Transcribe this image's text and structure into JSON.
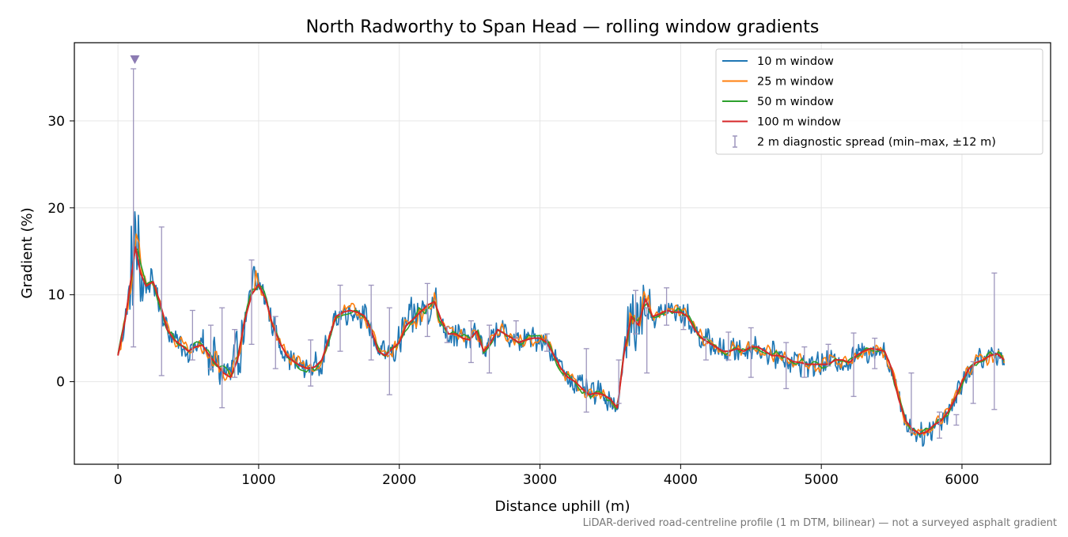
{
  "chart_data": {
    "type": "line",
    "title": "North Radworthy to Span Head — rolling window gradients",
    "xlabel": "Distance uphill (m)",
    "ylabel": "Gradient (%)",
    "footnote": "LiDAR-derived road-centreline profile (1 m DTM, bilinear) — not a surveyed asphalt gradient",
    "xlim": [
      -310,
      6630
    ],
    "ylim": [
      -9.5,
      39
    ],
    "x_ticks": [
      0,
      1000,
      2000,
      3000,
      4000,
      5000,
      6000
    ],
    "y_ticks": [
      0,
      10,
      20,
      30
    ],
    "grid": true,
    "legend_position": "upper right",
    "legend": [
      {
        "label": "10 m window",
        "color": "#1f77b4",
        "kind": "line"
      },
      {
        "label": "25 m window",
        "color": "#ff7f0e",
        "kind": "line"
      },
      {
        "label": "50 m window",
        "color": "#2ca02c",
        "kind": "line"
      },
      {
        "label": "100 m window",
        "color": "#d62728",
        "kind": "line"
      },
      {
        "label": "2 m diagnostic spread (min–max, ±12 m)",
        "color": "#9d95bd",
        "kind": "errorbar"
      }
    ],
    "series": [
      {
        "name": "100 m window",
        "color": "#d62728",
        "x": [
          0,
          50,
          90,
          125,
          160,
          200,
          250,
          300,
          350,
          400,
          450,
          500,
          550,
          600,
          650,
          700,
          750,
          800,
          850,
          900,
          950,
          1000,
          1050,
          1100,
          1150,
          1200,
          1250,
          1300,
          1350,
          1400,
          1450,
          1500,
          1550,
          1600,
          1650,
          1700,
          1750,
          1800,
          1850,
          1900,
          1950,
          2000,
          2050,
          2100,
          2150,
          2200,
          2250,
          2300,
          2350,
          2400,
          2450,
          2500,
          2550,
          2600,
          2650,
          2700,
          2750,
          2800,
          2850,
          2900,
          2950,
          3000,
          3050,
          3100,
          3150,
          3200,
          3250,
          3300,
          3350,
          3400,
          3450,
          3500,
          3550,
          3600,
          3650,
          3700,
          3750,
          3800,
          3850,
          3900,
          3950,
          4000,
          4050,
          4100,
          4150,
          4200,
          4250,
          4300,
          4350,
          4400,
          4450,
          4500,
          4550,
          4600,
          4650,
          4700,
          4750,
          4800,
          4850,
          4900,
          4950,
          5000,
          5050,
          5100,
          5150,
          5200,
          5250,
          5300,
          5350,
          5400,
          5450,
          5500,
          5550,
          5600,
          5650,
          5700,
          5750,
          5800,
          5850,
          5900,
          5950,
          6000,
          6050,
          6100,
          6150,
          6200,
          6250,
          6300
        ],
        "y": [
          3,
          7,
          11.5,
          15.5,
          12.5,
          11,
          11.5,
          9,
          6,
          4.8,
          4.2,
          3.5,
          4,
          4.2,
          3,
          2,
          1,
          0.5,
          2.5,
          7,
          10,
          11.2,
          9.5,
          6.5,
          4.5,
          3,
          2.3,
          1.8,
          1.5,
          1.7,
          2.5,
          5,
          7.5,
          8,
          8.2,
          8,
          7.6,
          6,
          3.5,
          3,
          3.8,
          4.5,
          6.5,
          7.2,
          8,
          8.8,
          9.2,
          7,
          5.5,
          5.5,
          5,
          4.8,
          5.8,
          3.5,
          4.5,
          6,
          5.5,
          5,
          4.5,
          4.8,
          5,
          5,
          4.5,
          3,
          1.5,
          0.5,
          0,
          -0.8,
          -1.5,
          -1.3,
          -1.5,
          -2,
          -3,
          3.5,
          7.5,
          6.5,
          9.5,
          7.5,
          7.8,
          8.2,
          8,
          8,
          7.5,
          6,
          5,
          4.5,
          4,
          3.5,
          3.5,
          3.8,
          3.5,
          4,
          4,
          3.5,
          3,
          3,
          2.8,
          2.3,
          2.2,
          2,
          2,
          2,
          2,
          2.5,
          2.5,
          2.2,
          3,
          3.5,
          3.8,
          3.7,
          3.5,
          1.5,
          -2,
          -4.5,
          -5.5,
          -6,
          -5.8,
          -5,
          -4.5,
          -3.5,
          -2,
          0,
          1.5,
          2.2,
          2.5,
          3,
          3.2,
          2.5
        ]
      },
      {
        "name": "10 m window",
        "color": "#1f77b4",
        "noise": 1.7,
        "follows": "100 m window"
      },
      {
        "name": "25 m window",
        "color": "#ff7f0e",
        "noise": 1.05,
        "follows": "100 m window"
      },
      {
        "name": "50 m window",
        "color": "#2ca02c",
        "noise": 0.6,
        "follows": "100 m window"
      }
    ],
    "errorbars": {
      "name": "2 m diagnostic spread (min–max, ±12 m)",
      "x": [
        110,
        310,
        530,
        660,
        740,
        830,
        950,
        1120,
        1370,
        1580,
        1800,
        1930,
        2200,
        2340,
        2510,
        2640,
        2830,
        3050,
        3330,
        3560,
        3680,
        3760,
        3900,
        4020,
        4180,
        4340,
        4500,
        4750,
        4880,
        5050,
        5230,
        5380,
        5640,
        5840,
        5960,
        6080,
        6230
      ],
      "low": [
        4,
        0.7,
        2.5,
        1.5,
        -3,
        0.5,
        4.3,
        1.5,
        -0.5,
        3.5,
        2.5,
        -1.5,
        5.2,
        4.5,
        2.2,
        1,
        5,
        3.5,
        -3.5,
        -2.5,
        5.5,
        1,
        6.5,
        6,
        2.5,
        2.5,
        0.5,
        -0.8,
        0.5,
        1.8,
        -1.7,
        1.5,
        -5.8,
        -6.5,
        -5,
        -2.5,
        -3.2
      ],
      "high": [
        36,
        17.8,
        8.2,
        6.5,
        8.5,
        6,
        14,
        7.5,
        4.8,
        11.1,
        11.1,
        8.5,
        11.3,
        6.3,
        7,
        6.5,
        7,
        5.5,
        3.8,
        2.5,
        10.5,
        8.5,
        10.8,
        7.5,
        5,
        5.7,
        6.2,
        4.5,
        4,
        4.3,
        5.6,
        5,
        1,
        -3.5,
        -3.8,
        2.3,
        12.5
      ]
    },
    "marker": {
      "x": 120,
      "y": 37,
      "symbol": "triangle-down",
      "color": "#8c7bb3"
    }
  }
}
